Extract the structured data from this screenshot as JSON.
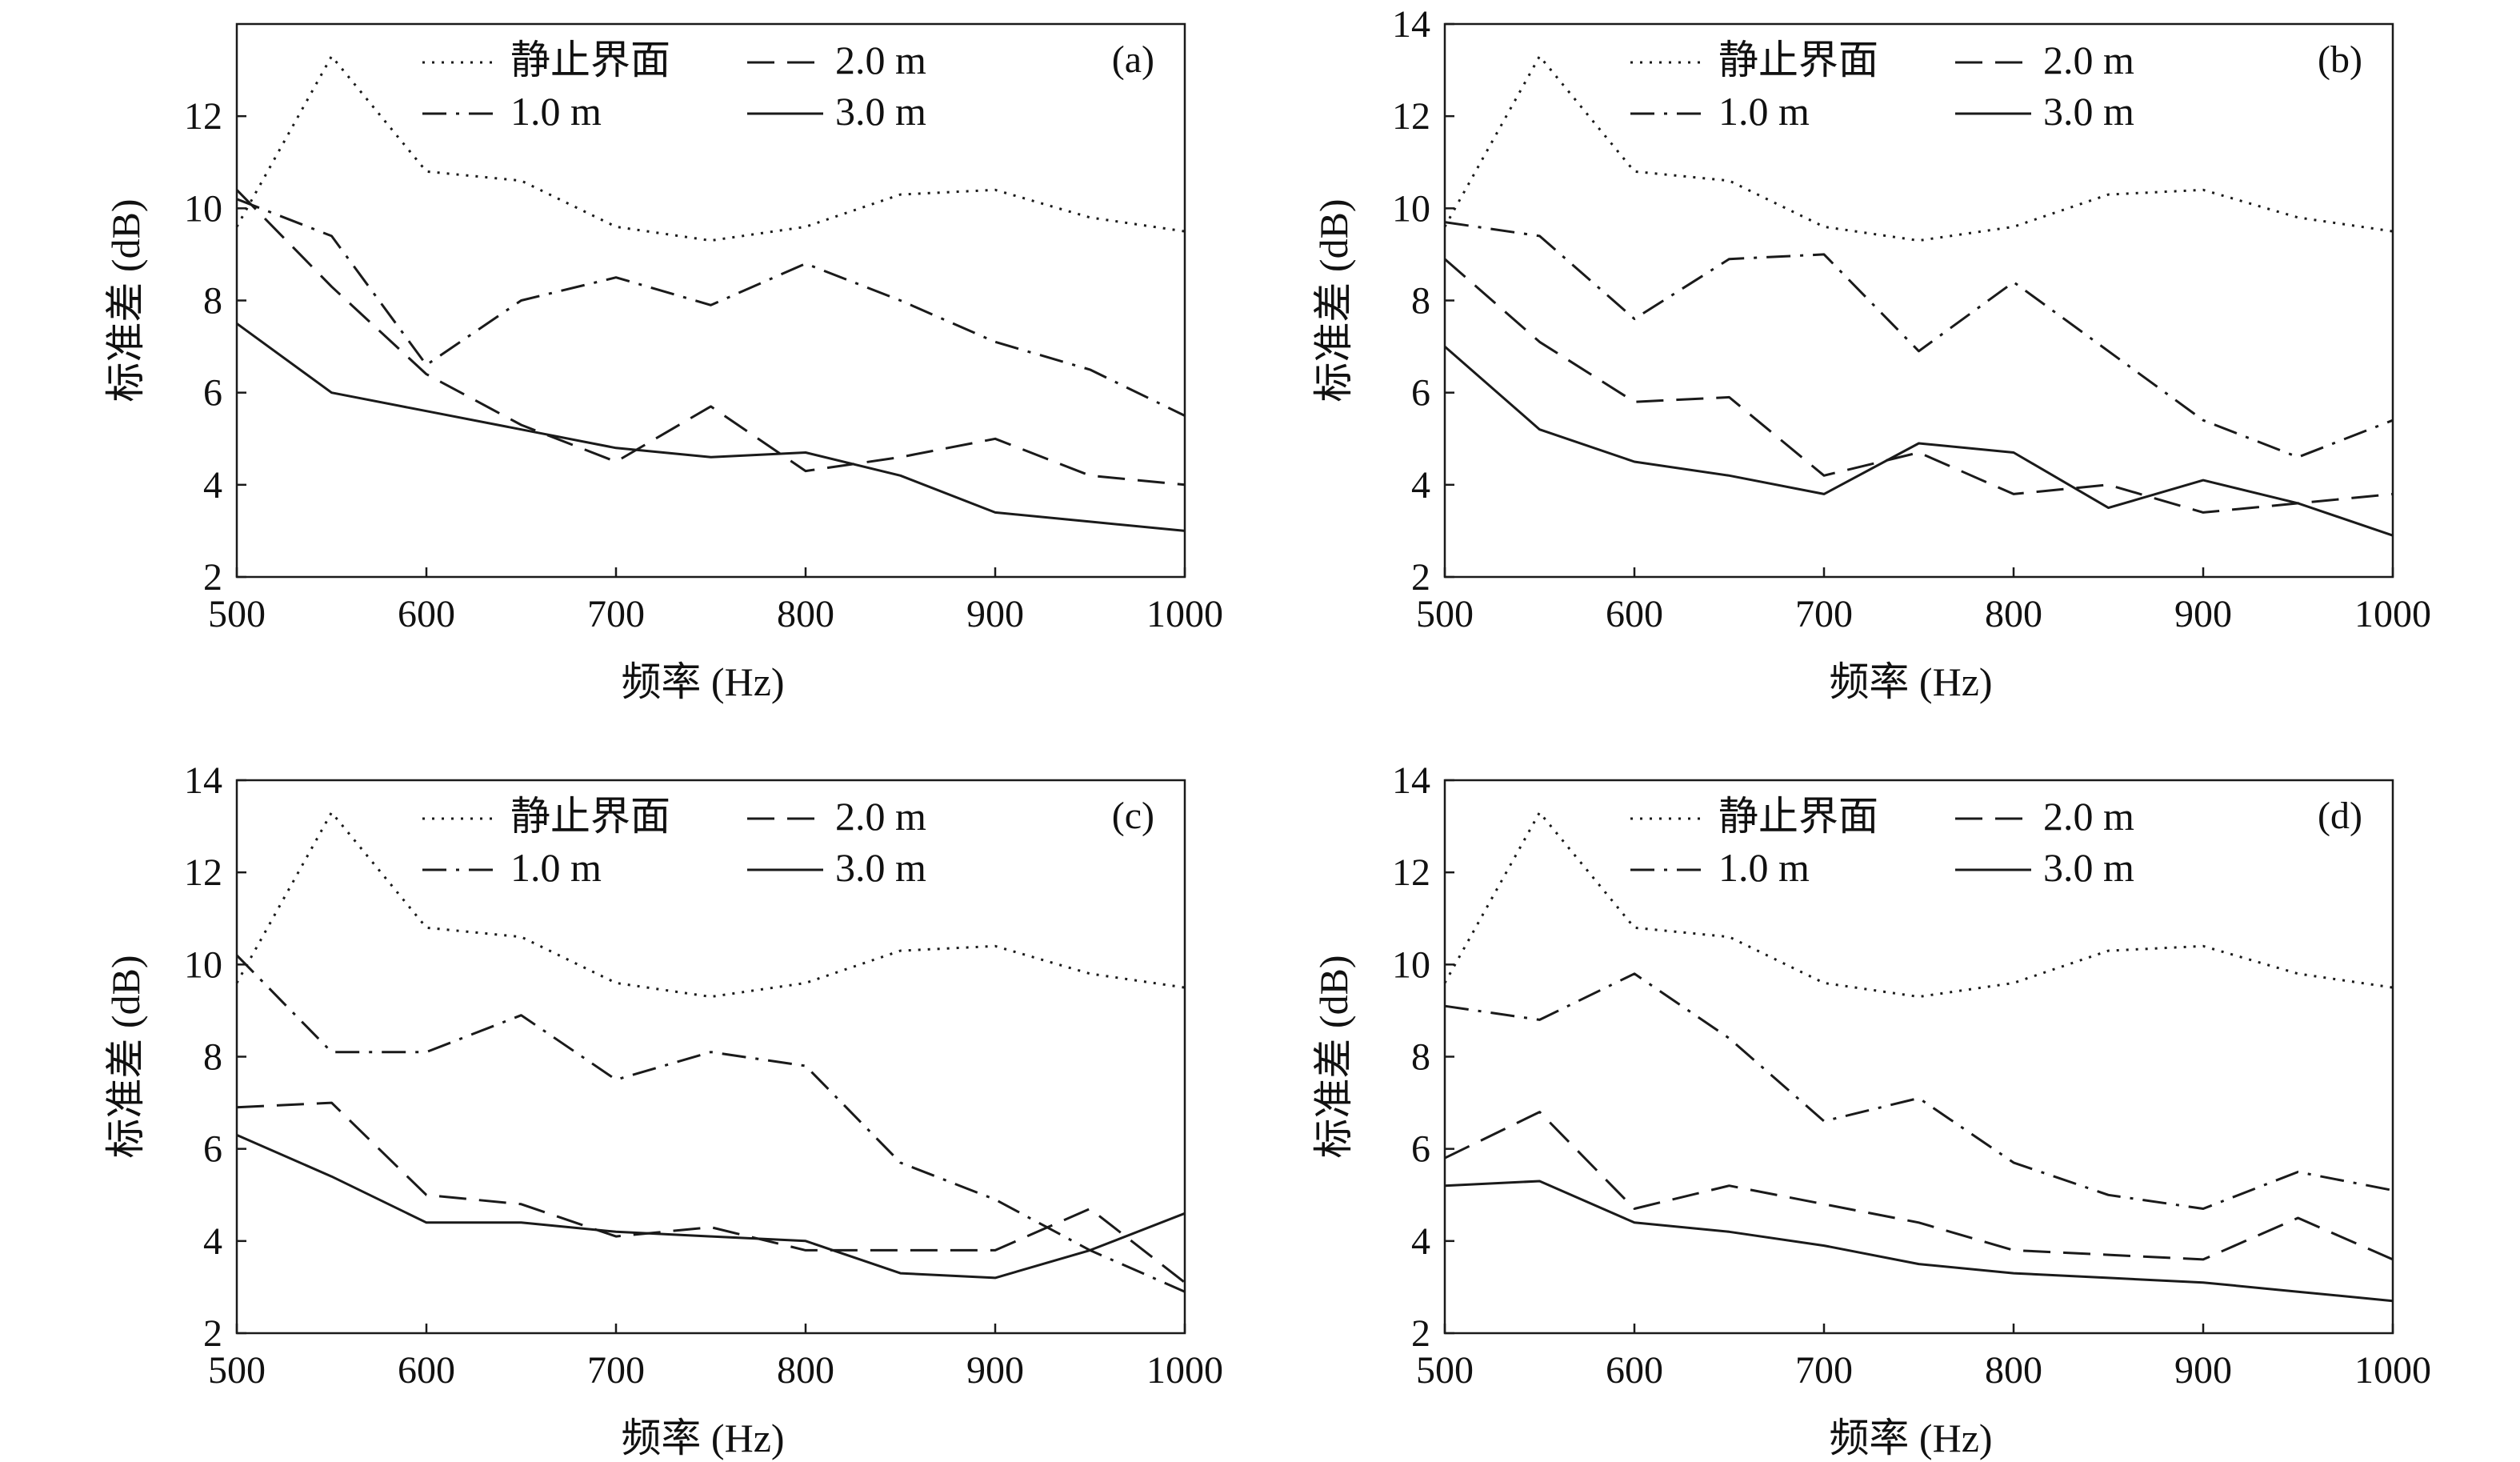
{
  "legend_labels": {
    "static": "静止界面",
    "m1": "1.0 m",
    "m2": "2.0 m",
    "m3": "3.0 m"
  },
  "chart_data": [
    {
      "type": "line",
      "panel_label": "(a)",
      "xlabel": "频率 (Hz)",
      "ylabel": "标准差 (dB)",
      "xlim": [
        500,
        1000
      ],
      "ylim": [
        2,
        14
      ],
      "x_ticks": [
        500,
        600,
        700,
        800,
        900,
        1000
      ],
      "y_ticks": [
        2,
        4,
        6,
        8,
        10,
        12
      ],
      "legend_position": "top",
      "x": [
        500,
        550,
        600,
        650,
        700,
        750,
        800,
        850,
        900,
        950,
        1000
      ],
      "series": [
        {
          "name": "静止界面",
          "style": "dotted",
          "values": [
            9.6,
            13.3,
            10.8,
            10.6,
            9.6,
            9.3,
            9.6,
            10.3,
            10.4,
            9.8,
            9.5
          ]
        },
        {
          "name": "1.0 m",
          "style": "dash-dot",
          "values": [
            10.2,
            9.4,
            6.6,
            8.0,
            8.5,
            7.9,
            8.8,
            8.0,
            7.1,
            6.5,
            5.5
          ]
        },
        {
          "name": "2.0 m",
          "style": "dashed",
          "values": [
            10.4,
            8.3,
            6.4,
            5.3,
            4.5,
            5.7,
            4.3,
            4.6,
            5.0,
            4.2,
            4.0
          ]
        },
        {
          "name": "3.0 m",
          "style": "solid",
          "values": [
            7.5,
            6.0,
            5.6,
            5.2,
            4.8,
            4.6,
            4.7,
            4.2,
            3.4,
            3.2,
            3.0
          ]
        }
      ]
    },
    {
      "type": "line",
      "panel_label": "(b)",
      "xlabel": "频率 (Hz)",
      "ylabel": "标准差 (dB)",
      "xlim": [
        500,
        1000
      ],
      "ylim": [
        2,
        14
      ],
      "x_ticks": [
        500,
        600,
        700,
        800,
        900,
        1000
      ],
      "y_ticks": [
        2,
        4,
        6,
        8,
        10,
        12,
        14
      ],
      "legend_position": "top",
      "x": [
        500,
        550,
        600,
        650,
        700,
        750,
        800,
        850,
        900,
        950,
        1000
      ],
      "series": [
        {
          "name": "静止界面",
          "style": "dotted",
          "values": [
            9.6,
            13.3,
            10.8,
            10.6,
            9.6,
            9.3,
            9.6,
            10.3,
            10.4,
            9.8,
            9.5
          ]
        },
        {
          "name": "1.0 m",
          "style": "dash-dot",
          "values": [
            9.7,
            9.4,
            7.6,
            8.9,
            9.0,
            6.9,
            8.4,
            6.9,
            5.4,
            4.6,
            5.4
          ]
        },
        {
          "name": "2.0 m",
          "style": "dashed",
          "values": [
            8.9,
            7.1,
            5.8,
            5.9,
            4.2,
            4.7,
            3.8,
            4.0,
            3.4,
            3.6,
            3.8
          ]
        },
        {
          "name": "3.0 m",
          "style": "solid",
          "values": [
            7.0,
            5.2,
            4.5,
            4.2,
            3.8,
            4.9,
            4.7,
            3.5,
            4.1,
            3.6,
            2.9
          ]
        }
      ]
    },
    {
      "type": "line",
      "panel_label": "(c)",
      "xlabel": "频率 (Hz)",
      "ylabel": "标准差 (dB)",
      "xlim": [
        500,
        1000
      ],
      "ylim": [
        2,
        14
      ],
      "x_ticks": [
        500,
        600,
        700,
        800,
        900,
        1000
      ],
      "y_ticks": [
        2,
        4,
        6,
        8,
        10,
        12,
        14
      ],
      "legend_position": "top",
      "x": [
        500,
        550,
        600,
        650,
        700,
        750,
        800,
        850,
        900,
        950,
        1000
      ],
      "series": [
        {
          "name": "静止界面",
          "style": "dotted",
          "values": [
            9.6,
            13.3,
            10.8,
            10.6,
            9.6,
            9.3,
            9.6,
            10.3,
            10.4,
            9.8,
            9.5
          ]
        },
        {
          "name": "1.0 m",
          "style": "dash-dot",
          "values": [
            10.2,
            8.1,
            8.1,
            8.9,
            7.5,
            8.1,
            7.8,
            5.7,
            4.9,
            3.8,
            2.9
          ]
        },
        {
          "name": "2.0 m",
          "style": "dashed",
          "values": [
            6.9,
            7.0,
            5.0,
            4.8,
            4.1,
            4.3,
            3.8,
            3.8,
            3.8,
            4.7,
            3.1
          ]
        },
        {
          "name": "3.0 m",
          "style": "solid",
          "values": [
            6.3,
            5.4,
            4.4,
            4.4,
            4.2,
            4.1,
            4.0,
            3.3,
            3.2,
            3.8,
            4.6
          ]
        }
      ]
    },
    {
      "type": "line",
      "panel_label": "(d)",
      "xlabel": "频率 (Hz)",
      "ylabel": "标准差 (dB)",
      "xlim": [
        500,
        1000
      ],
      "ylim": [
        2,
        14
      ],
      "x_ticks": [
        500,
        600,
        700,
        800,
        900,
        1000
      ],
      "y_ticks": [
        2,
        4,
        6,
        8,
        10,
        12,
        14
      ],
      "legend_position": "top",
      "x": [
        500,
        550,
        600,
        650,
        700,
        750,
        800,
        850,
        900,
        950,
        1000
      ],
      "series": [
        {
          "name": "静止界面",
          "style": "dotted",
          "values": [
            9.6,
            13.3,
            10.8,
            10.6,
            9.6,
            9.3,
            9.6,
            10.3,
            10.4,
            9.8,
            9.5
          ]
        },
        {
          "name": "1.0 m",
          "style": "dash-dot",
          "values": [
            9.1,
            8.8,
            9.8,
            8.4,
            6.6,
            7.1,
            5.7,
            5.0,
            4.7,
            5.5,
            5.1
          ]
        },
        {
          "name": "2.0 m",
          "style": "dashed",
          "values": [
            5.8,
            6.8,
            4.7,
            5.2,
            4.8,
            4.4,
            3.8,
            3.7,
            3.6,
            4.5,
            3.6
          ]
        },
        {
          "name": "3.0 m",
          "style": "solid",
          "values": [
            5.2,
            5.3,
            4.4,
            4.2,
            3.9,
            3.5,
            3.3,
            3.2,
            3.1,
            2.9,
            2.7
          ]
        }
      ]
    }
  ]
}
